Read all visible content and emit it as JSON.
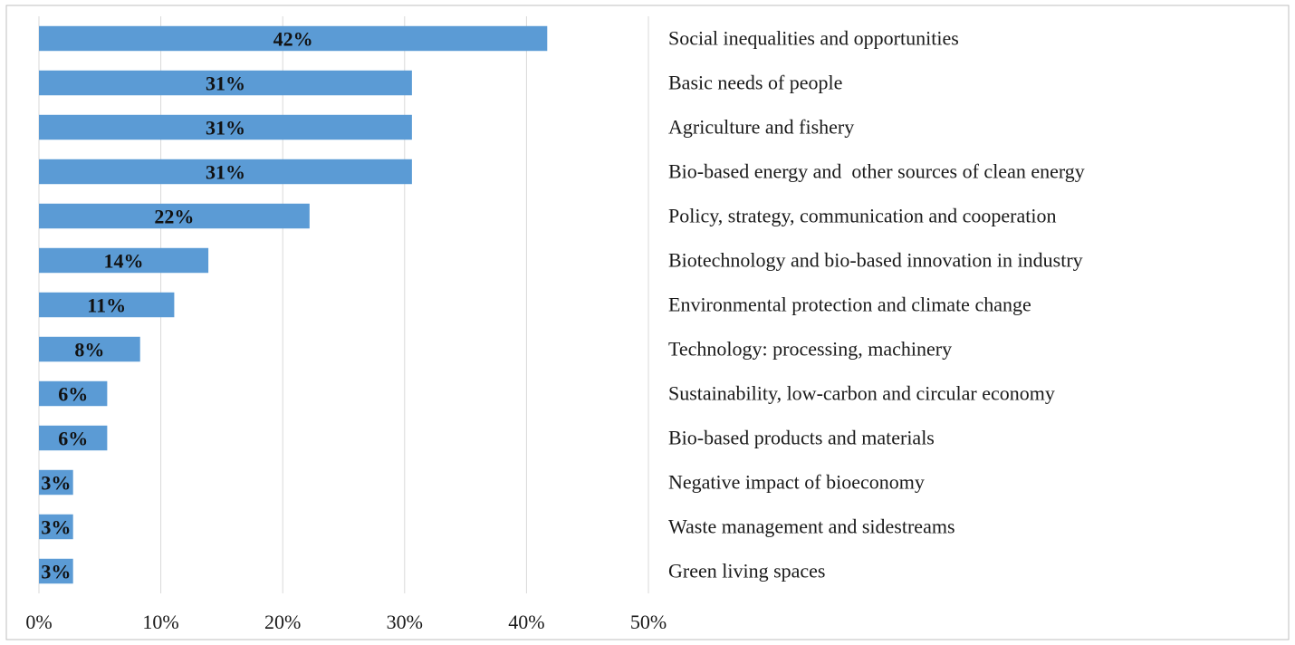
{
  "chart_data": {
    "type": "bar",
    "orientation": "horizontal",
    "title": "",
    "xlabel": "",
    "ylabel": "",
    "categories": [
      "Social inequalities and opportunities",
      "Basic needs of people",
      "Agriculture and fishery",
      "Bio-based energy and  other sources of clean energy",
      "Policy, strategy, communication and cooperation",
      "Biotechnology and bio-based innovation in industry",
      "Environmental protection and climate change",
      "Technology: processing, machinery",
      "Sustainability, low-carbon and circular economy",
      "Bio-based products and materials",
      "Negative impact of bioeconomy",
      "Waste management and sidestreams",
      "Green living spaces"
    ],
    "values": [
      41.7,
      30.6,
      30.6,
      30.6,
      22.2,
      13.9,
      11.1,
      8.3,
      5.6,
      5.6,
      2.8,
      2.8,
      2.8
    ],
    "data_labels": [
      "42%",
      "31%",
      "31%",
      "31%",
      "22%",
      "14%",
      "11%",
      "8%",
      "6%",
      "6%",
      "3%",
      "3%",
      "3%"
    ],
    "xlim": [
      0,
      50
    ],
    "xticks": [
      "0%",
      "10%",
      "20%",
      "30%",
      "40%",
      "50%"
    ],
    "grid": true,
    "legend": "none",
    "colors": {
      "bar": "#5b9bd5",
      "grid": "#d9d9d9",
      "frame": "#bfbfbf"
    }
  }
}
